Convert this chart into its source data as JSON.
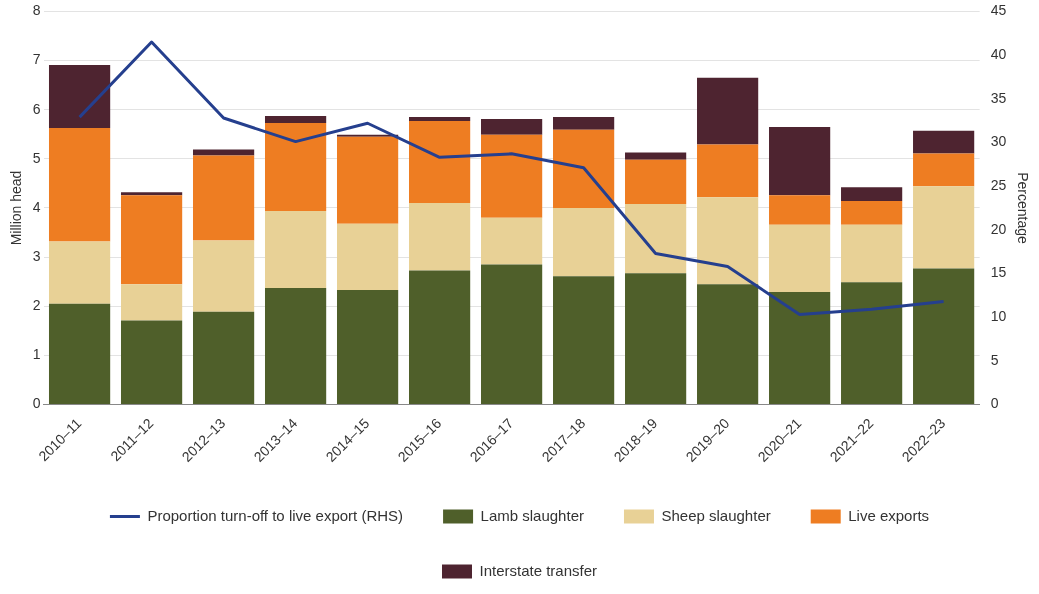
{
  "chart_data": {
    "type": "bar",
    "stacked": true,
    "ylabel": "Million head",
    "y2label": "Percentage",
    "categories": [
      "2010–11",
      "2011–12",
      "2012–13",
      "2013–14",
      "2014–15",
      "2015–16",
      "2016–17",
      "2017–18",
      "2018–19",
      "2019–20",
      "2020–21",
      "2021–22",
      "2022–23"
    ],
    "series": [
      {
        "name": "Lamb slaughter",
        "color": "#4f5f2a",
        "values": [
          2.05,
          1.71,
          1.89,
          2.37,
          2.33,
          2.73,
          2.85,
          2.61,
          2.67,
          2.45,
          2.29,
          2.49,
          2.77
        ]
      },
      {
        "name": "Sheep slaughter",
        "color": "#e8d196",
        "values": [
          1.27,
          0.74,
          1.45,
          1.57,
          1.35,
          1.37,
          0.95,
          1.39,
          1.41,
          1.77,
          1.37,
          1.17,
          1.67
        ]
      },
      {
        "name": "Live exports",
        "color": "#ee7d22",
        "values": [
          2.31,
          1.81,
          1.73,
          1.79,
          1.77,
          1.67,
          1.69,
          1.59,
          0.9,
          1.07,
          0.6,
          0.48,
          0.67
        ]
      },
      {
        "name": "Interstate transfer",
        "color": "#4e2430",
        "values": [
          1.28,
          0.06,
          0.12,
          0.14,
          0.04,
          0.08,
          0.32,
          0.26,
          0.15,
          1.36,
          1.39,
          0.28,
          0.46
        ]
      },
      {
        "name": "Proportion turn-off to live export (RHS)",
        "type": "line",
        "axis": "y2",
        "color": "#253f8e",
        "values": [
          32.9,
          41.5,
          32.8,
          30.1,
          32.2,
          28.3,
          28.7,
          27.1,
          17.3,
          15.8,
          10.3,
          10.9,
          11.8
        ]
      }
    ],
    "ylim": [
      0,
      8
    ],
    "yticks": [
      0,
      1,
      2,
      3,
      4,
      5,
      6,
      7,
      8
    ],
    "y2lim": [
      0,
      45
    ],
    "y2ticks": [
      0,
      5,
      10,
      15,
      20,
      25,
      30,
      35,
      40,
      45
    ],
    "grid": "y",
    "legend": "bottom",
    "marker": "none"
  }
}
